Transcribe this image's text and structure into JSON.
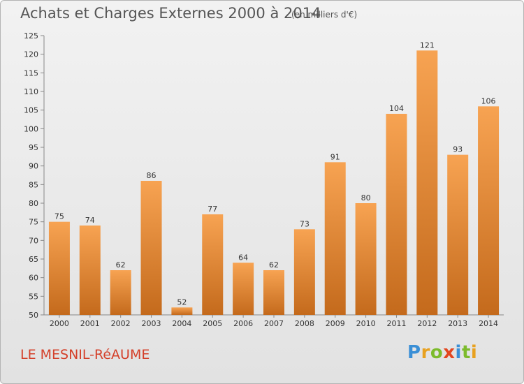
{
  "header": {
    "title": "Achats et Charges Externes 2000 à 2014",
    "subtitle": "(en milliers d'€)"
  },
  "footer": {
    "commune": "LE MESNIL-RéAUME",
    "brand": [
      "P",
      "r",
      "o",
      "x",
      "i",
      "t",
      "i"
    ]
  },
  "colors": {
    "bar_light": "#f7a352",
    "bar_dark": "#c46a1c",
    "axis": "#888888",
    "text": "#333333"
  },
  "chart_data": {
    "type": "bar",
    "title": "Achats et Charges Externes 2000 à 2014",
    "subtitle": "(en milliers d'€)",
    "categories": [
      "2000",
      "2001",
      "2002",
      "2003",
      "2004",
      "2005",
      "2006",
      "2007",
      "2008",
      "2009",
      "2010",
      "2011",
      "2012",
      "2013",
      "2014"
    ],
    "values": [
      75,
      74,
      62,
      86,
      52,
      77,
      64,
      62,
      73,
      91,
      80,
      104,
      121,
      93,
      106
    ],
    "ylim": [
      50,
      125
    ],
    "yticks": [
      50,
      55,
      60,
      65,
      70,
      75,
      80,
      85,
      90,
      95,
      100,
      105,
      110,
      115,
      120,
      125
    ],
    "grid": false,
    "legend": "none"
  }
}
